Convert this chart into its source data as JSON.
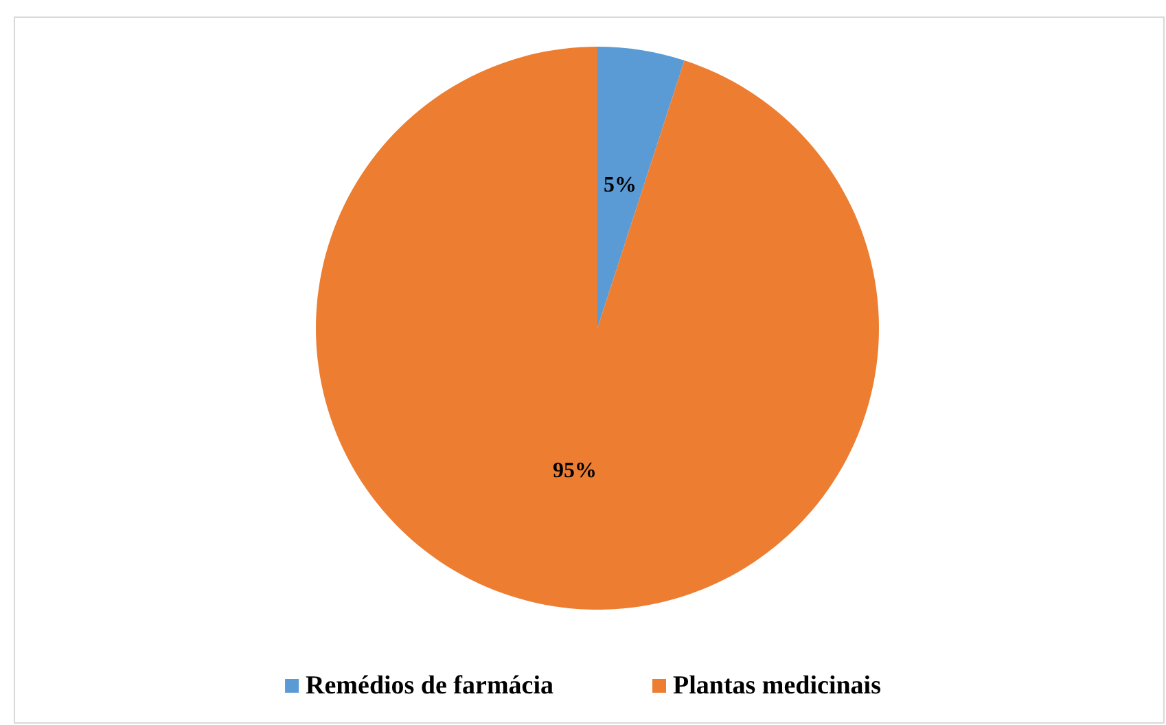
{
  "chart_data": {
    "type": "pie",
    "categories": [
      "Remédios de farmácia",
      "Plantas medicinais"
    ],
    "values": [
      5,
      95
    ],
    "value_labels": [
      "5%",
      "95%"
    ],
    "colors": [
      "#5b9bd5",
      "#ed7d31"
    ],
    "legend": "bottom"
  }
}
